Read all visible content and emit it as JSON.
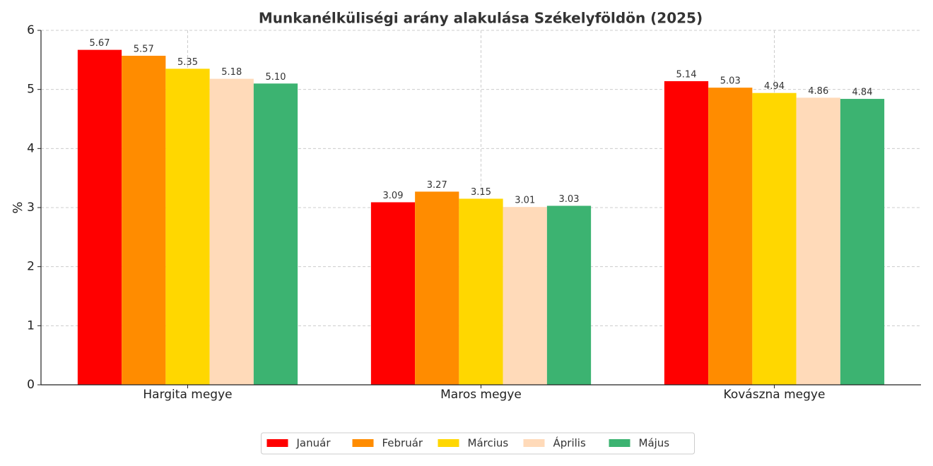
{
  "chart_data": {
    "type": "bar",
    "title": "Munkanélküliségi arány alakulása Székelyföldön (2025)",
    "y_label": "%",
    "categories": [
      "Hargita megye",
      "Maros megye",
      "Kovászna megye"
    ],
    "series": [
      {
        "name": "Január",
        "color": "#ff0000",
        "values": [
          5.67,
          3.09,
          5.14
        ],
        "value_labels": [
          "5.67",
          "3.09",
          "5.14"
        ]
      },
      {
        "name": "Február",
        "color": "#ff8c00",
        "values": [
          5.57,
          3.27,
          5.03
        ],
        "value_labels": [
          "5.57",
          "3.27",
          "5.03"
        ]
      },
      {
        "name": "Március",
        "color": "#ffd700",
        "values": [
          5.35,
          3.15,
          4.94
        ],
        "value_labels": [
          "5.35",
          "3.15",
          "4.94"
        ]
      },
      {
        "name": "Április",
        "color": "#ffdab9",
        "values": [
          5.18,
          3.01,
          4.86
        ],
        "value_labels": [
          "5.18",
          "3.01",
          "4.86"
        ]
      },
      {
        "name": "Május",
        "color": "#3cb371",
        "values": [
          5.1,
          3.03,
          4.84
        ],
        "value_labels": [
          "5.10",
          "3.03",
          "4.84"
        ]
      }
    ],
    "ylim": [
      0,
      6
    ],
    "yticks": [
      0,
      1,
      2,
      3,
      4,
      5,
      6
    ],
    "grid": true,
    "legend": "bottom"
  }
}
